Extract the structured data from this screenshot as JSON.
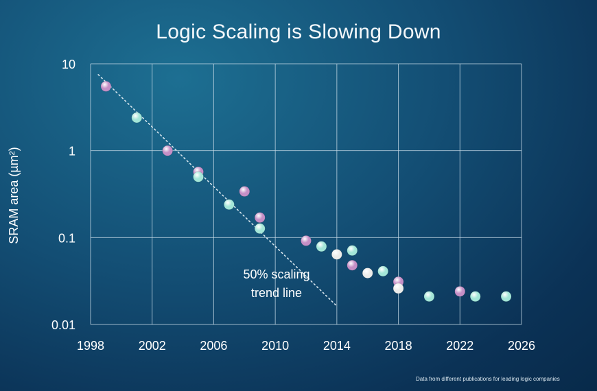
{
  "chart_data": {
    "type": "scatter",
    "title": "Logic Scaling is Slowing Down",
    "xlabel": "",
    "ylabel": "SRAM area (µm²)",
    "xlim": [
      1998,
      2026
    ],
    "ylim": [
      0.01,
      10
    ],
    "yscale": "log",
    "grid": true,
    "x_ticks": [
      1998,
      2002,
      2006,
      2010,
      2014,
      2018,
      2022,
      2026
    ],
    "x_tick_labels": [
      "1998",
      "2002",
      "2006",
      "2010",
      "2014",
      "2018",
      "2022",
      "2026"
    ],
    "y_ticks": [
      0.01,
      0.1,
      1,
      10
    ],
    "y_tick_labels": [
      "0.01",
      "0.1",
      "1",
      "10"
    ],
    "series": [
      {
        "color": "#c58fc6",
        "points": [
          {
            "x": 1999,
            "y": 5.5
          },
          {
            "x": 2003,
            "y": 1.0
          },
          {
            "x": 2005,
            "y": 0.57
          },
          {
            "x": 2008,
            "y": 0.34
          },
          {
            "x": 2009,
            "y": 0.17
          },
          {
            "x": 2012,
            "y": 0.092
          },
          {
            "x": 2015,
            "y": 0.048
          },
          {
            "x": 2018,
            "y": 0.031
          },
          {
            "x": 2022,
            "y": 0.024
          }
        ]
      },
      {
        "color": "#a3e6d8",
        "points": [
          {
            "x": 2001,
            "y": 2.4
          },
          {
            "x": 2005,
            "y": 0.5
          },
          {
            "x": 2007,
            "y": 0.24
          },
          {
            "x": 2009,
            "y": 0.127
          },
          {
            "x": 2013,
            "y": 0.079
          },
          {
            "x": 2015,
            "y": 0.071
          },
          {
            "x": 2017,
            "y": 0.041
          },
          {
            "x": 2020,
            "y": 0.021
          },
          {
            "x": 2023,
            "y": 0.021
          },
          {
            "x": 2025,
            "y": 0.021
          }
        ]
      },
      {
        "color": "#ececea",
        "points": [
          {
            "x": 2014,
            "y": 0.064
          },
          {
            "x": 2016,
            "y": 0.039
          },
          {
            "x": 2018,
            "y": 0.026
          }
        ]
      }
    ],
    "trend_line": {
      "label_lines": [
        "50% scaling",
        "trend line"
      ],
      "points": [
        {
          "x": 1998.5,
          "y": 7.5
        },
        {
          "x": 2014,
          "y": 0.0163
        }
      ]
    },
    "footnote": "Data from different publications for leading logic companies"
  }
}
